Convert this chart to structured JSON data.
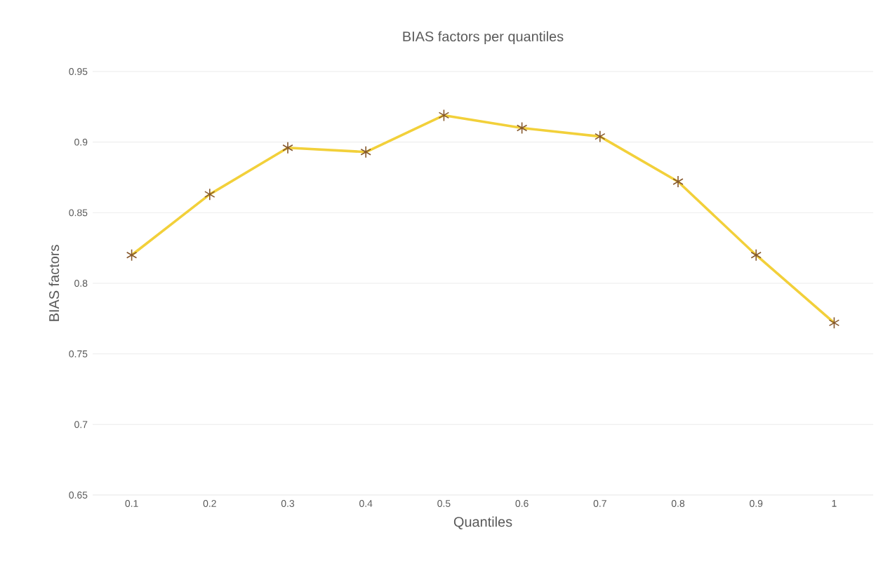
{
  "chart_data": {
    "type": "line",
    "title": "BIAS factors per quantiles",
    "xlabel": "Quantiles",
    "ylabel": "BIAS factors",
    "categories": [
      "0.1",
      "0.2",
      "0.3",
      "0.4",
      "0.5",
      "0.6",
      "0.7",
      "0.8",
      "0.9",
      "1"
    ],
    "series": [
      {
        "color": "#f2d03a",
        "values": [
          0.82,
          0.863,
          0.896,
          0.893,
          0.919,
          0.91,
          0.904,
          0.872,
          0.82,
          0.772
        ]
      }
    ],
    "ylim": [
      0.65,
      0.95
    ],
    "yticks": [
      0.65,
      0.7,
      0.75,
      0.8,
      0.85,
      0.9,
      0.95
    ],
    "grid": "y",
    "marker": "cross",
    "line_style": "solid"
  }
}
